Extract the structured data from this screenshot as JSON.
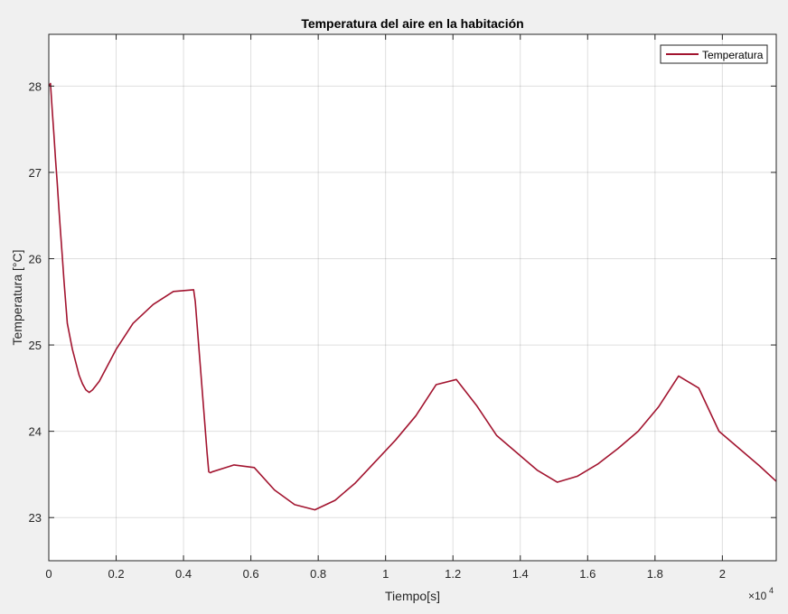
{
  "chart_data": {
    "type": "line",
    "title": "Temperatura del aire en la habitación",
    "xlabel": "Tiempo[s]",
    "ylabel": "Temperatura [°C]",
    "x_exponent_label": "×10",
    "x_exponent_power": "4",
    "xlim": [
      0,
      21600
    ],
    "ylim": [
      22.5,
      28.6
    ],
    "x_ticks": [
      0,
      2000,
      4000,
      6000,
      8000,
      10000,
      12000,
      14000,
      16000,
      18000,
      20000
    ],
    "x_tick_labels": [
      "0",
      "0.2",
      "0.4",
      "0.6",
      "0.8",
      "1",
      "1.2",
      "1.4",
      "1.6",
      "1.8",
      "2"
    ],
    "y_ticks": [
      23,
      24,
      25,
      26,
      27,
      28
    ],
    "y_tick_labels": [
      "23",
      "24",
      "25",
      "26",
      "27",
      "28"
    ],
    "grid": true,
    "legend_position": "top-right",
    "series": [
      {
        "name": "Temperatura",
        "color": "#a2142f",
        "x": [
          0,
          50,
          100,
          150,
          200,
          250,
          300,
          350,
          400,
          450,
          500,
          550,
          600,
          650,
          700,
          800,
          900,
          1000,
          1100,
          1200,
          1300,
          1500,
          2000,
          2500,
          3100,
          3700,
          4300,
          4350,
          4400,
          4450,
          4500,
          4550,
          4600,
          4650,
          4700,
          4750,
          4800,
          4850,
          5500,
          6100,
          6700,
          7300,
          7900,
          8500,
          9100,
          9700,
          10300,
          10900,
          11500,
          12100,
          12700,
          13300,
          13900,
          14500,
          15100,
          15700,
          16300,
          16900,
          17500,
          18100,
          18700,
          19300,
          19900,
          20500,
          21100,
          21600
        ],
        "y": [
          28.0,
          28.03,
          27.73,
          27.45,
          27.15,
          26.88,
          26.58,
          26.3,
          26.03,
          25.75,
          25.5,
          25.25,
          25.15,
          25.05,
          24.95,
          24.8,
          24.65,
          24.55,
          24.48,
          24.45,
          24.48,
          24.58,
          24.95,
          25.25,
          25.47,
          25.62,
          25.64,
          25.5,
          25.25,
          25.0,
          24.75,
          24.5,
          24.25,
          24.0,
          23.75,
          23.53,
          23.52,
          23.53,
          23.61,
          23.58,
          23.32,
          23.15,
          23.09,
          23.2,
          23.4,
          23.65,
          23.9,
          24.18,
          24.54,
          24.6,
          24.3,
          23.95,
          23.75,
          23.55,
          23.41,
          23.48,
          23.62,
          23.8,
          24.0,
          24.28,
          24.64,
          24.5,
          24.0,
          23.8,
          23.6,
          23.42
        ]
      }
    ]
  }
}
